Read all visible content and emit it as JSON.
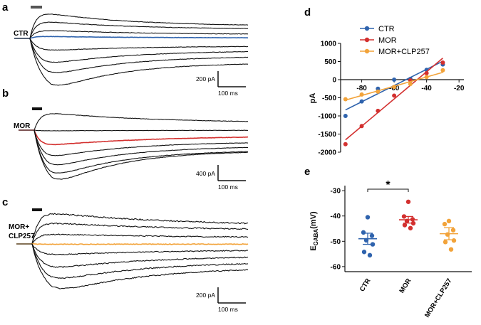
{
  "colors": {
    "ctr": "#2f63ad",
    "mor": "#d3302f",
    "clp": "#f2a33a",
    "black": "#111111"
  },
  "panels": {
    "a": {
      "letter": "a",
      "label": "CTR",
      "scale_current": "200 pA",
      "scale_time": "100 ms"
    },
    "b": {
      "letter": "b",
      "label": "MOR",
      "scale_current": "400 pA",
      "scale_time": "100 ms"
    },
    "c": {
      "letter": "c",
      "label_line1": "MOR+",
      "label_line2": "CLP257",
      "scale_current": "200 pA",
      "scale_time": "100 ms"
    },
    "d": {
      "letter": "d"
    },
    "e": {
      "letter": "e"
    }
  },
  "chart_data": [
    {
      "panel": "d",
      "type": "line",
      "x_ticks": [
        -80,
        -60,
        -40,
        -20
      ],
      "y_ticks": [
        1000,
        500,
        0,
        -500,
        -1000,
        -1500,
        -2000
      ],
      "xlim": [
        -93,
        -17
      ],
      "ylim": [
        -2000,
        1000
      ],
      "ylabel": "pA",
      "legend_position": "top-right",
      "series": [
        {
          "name": "CTR",
          "color": "#2f63ad",
          "x": [
            -90,
            -80,
            -70,
            -60,
            -50,
            -40,
            -30
          ],
          "y": [
            -1000,
            -600,
            -250,
            0,
            20,
            270,
            420
          ]
        },
        {
          "name": "MOR",
          "color": "#d3302f",
          "x": [
            -90,
            -80,
            -70,
            -60,
            -50,
            -40,
            -30
          ],
          "y": [
            -1780,
            -1280,
            -860,
            -440,
            -20,
            180,
            470
          ]
        },
        {
          "name": "MOR+CLP257",
          "color": "#f2a33a",
          "x": [
            -90,
            -80,
            -70,
            -60,
            -50,
            -40,
            -30
          ],
          "y": [
            -540,
            -410,
            -330,
            -200,
            -120,
            70,
            260
          ]
        }
      ]
    },
    {
      "panel": "e",
      "type": "scatter",
      "ylabel_main": "E",
      "ylabel_sub": "GABA",
      "ylabel_unit": "(mV)",
      "y_ticks": [
        -30,
        -40,
        -50,
        -60
      ],
      "ylim": [
        -62,
        -28
      ],
      "categories": [
        "CTR",
        "MOR",
        "MOR+CLP257"
      ],
      "significance": "*",
      "groups": [
        {
          "name": "CTR",
          "color": "#2f63ad",
          "mean": -49,
          "sem": 2.2,
          "values": [
            -40.5,
            -46.5,
            -47.8,
            -49.6,
            -51.2,
            -54.2,
            -55.5
          ]
        },
        {
          "name": "MOR",
          "color": "#d3302f",
          "mean": -41.5,
          "sem": 1.3,
          "values": [
            -34.4,
            -40.2,
            -41.3,
            -42.0,
            -42.9,
            -43.6,
            -44.8
          ]
        },
        {
          "name": "MOR+CLP257",
          "color": "#f2a33a",
          "mean": -47,
          "sem": 2.4,
          "values": [
            -42.0,
            -43.2,
            -45.6,
            -47.3,
            -49.7,
            -50.3,
            -53.2
          ]
        }
      ]
    }
  ]
}
